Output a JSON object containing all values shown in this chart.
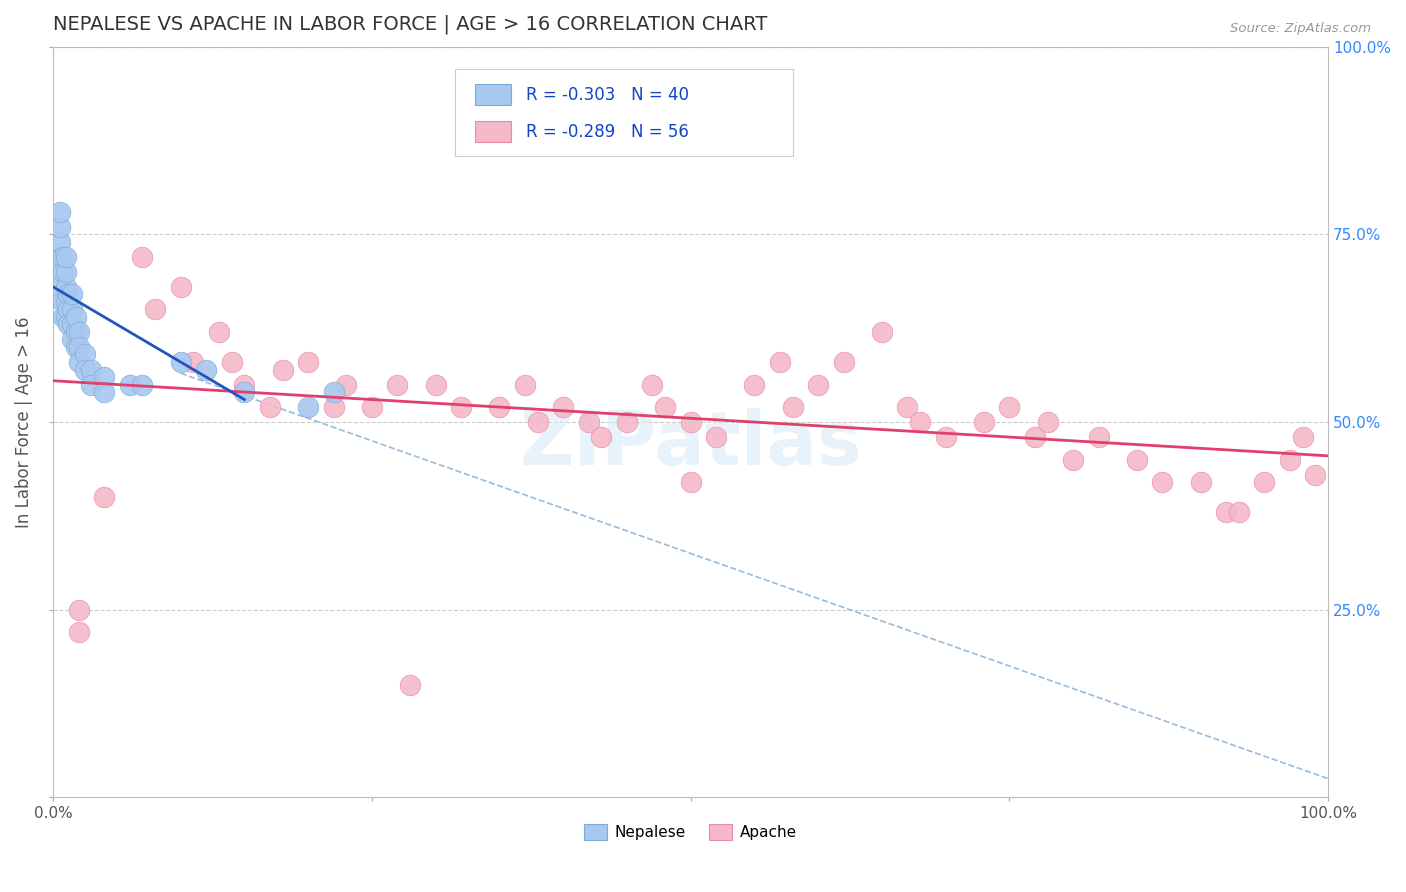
{
  "title": "NEPALESE VS APACHE IN LABOR FORCE | AGE > 16 CORRELATION CHART",
  "source": "Source: ZipAtlas.com",
  "ylabel": "In Labor Force | Age > 16",
  "xlim": [
    0.0,
    1.0
  ],
  "ylim": [
    0.0,
    1.0
  ],
  "nepalese_color": "#a8c8f0",
  "apache_color": "#f5b8c8",
  "nepalese_edge": "#7aaad8",
  "apache_edge": "#e88aaa",
  "trend_nepalese_color": "#2255bb",
  "trend_apache_color": "#e0406a",
  "diagonal_color": "#99bbdd",
  "background": "#ffffff",
  "grid_color": "#cccccc",
  "legend_R_nepalese": "R = -0.303",
  "legend_N_nepalese": "N = 40",
  "legend_R_apache": "R = -0.289",
  "legend_N_apache": "N = 56",
  "watermark": "ZIPatlas",
  "nepalese_x": [
    0.005,
    0.005,
    0.005,
    0.005,
    0.005,
    0.008,
    0.008,
    0.008,
    0.008,
    0.01,
    0.01,
    0.01,
    0.01,
    0.01,
    0.012,
    0.012,
    0.012,
    0.015,
    0.015,
    0.015,
    0.015,
    0.018,
    0.018,
    0.018,
    0.02,
    0.02,
    0.02,
    0.025,
    0.025,
    0.03,
    0.03,
    0.04,
    0.04,
    0.06,
    0.07,
    0.1,
    0.12,
    0.15,
    0.2,
    0.22
  ],
  "nepalese_y": [
    0.72,
    0.74,
    0.76,
    0.78,
    0.68,
    0.7,
    0.72,
    0.66,
    0.64,
    0.68,
    0.7,
    0.72,
    0.66,
    0.64,
    0.65,
    0.67,
    0.63,
    0.65,
    0.63,
    0.61,
    0.67,
    0.62,
    0.64,
    0.6,
    0.62,
    0.6,
    0.58,
    0.59,
    0.57,
    0.57,
    0.55,
    0.56,
    0.54,
    0.55,
    0.55,
    0.58,
    0.57,
    0.54,
    0.52,
    0.54
  ],
  "apache_x": [
    0.02,
    0.02,
    0.04,
    0.07,
    0.08,
    0.1,
    0.11,
    0.13,
    0.14,
    0.15,
    0.17,
    0.18,
    0.2,
    0.22,
    0.23,
    0.25,
    0.27,
    0.28,
    0.3,
    0.32,
    0.35,
    0.37,
    0.38,
    0.4,
    0.42,
    0.43,
    0.45,
    0.47,
    0.48,
    0.5,
    0.5,
    0.52,
    0.55,
    0.57,
    0.58,
    0.6,
    0.62,
    0.65,
    0.67,
    0.68,
    0.7,
    0.73,
    0.75,
    0.77,
    0.78,
    0.8,
    0.82,
    0.85,
    0.87,
    0.9,
    0.92,
    0.93,
    0.95,
    0.97,
    0.98,
    0.99
  ],
  "apache_y": [
    0.25,
    0.22,
    0.4,
    0.72,
    0.65,
    0.68,
    0.58,
    0.62,
    0.58,
    0.55,
    0.52,
    0.57,
    0.58,
    0.52,
    0.55,
    0.52,
    0.55,
    0.15,
    0.55,
    0.52,
    0.52,
    0.55,
    0.5,
    0.52,
    0.5,
    0.48,
    0.5,
    0.55,
    0.52,
    0.5,
    0.42,
    0.48,
    0.55,
    0.58,
    0.52,
    0.55,
    0.58,
    0.62,
    0.52,
    0.5,
    0.48,
    0.5,
    0.52,
    0.48,
    0.5,
    0.45,
    0.48,
    0.45,
    0.42,
    0.42,
    0.38,
    0.38,
    0.42,
    0.45,
    0.48,
    0.43
  ]
}
